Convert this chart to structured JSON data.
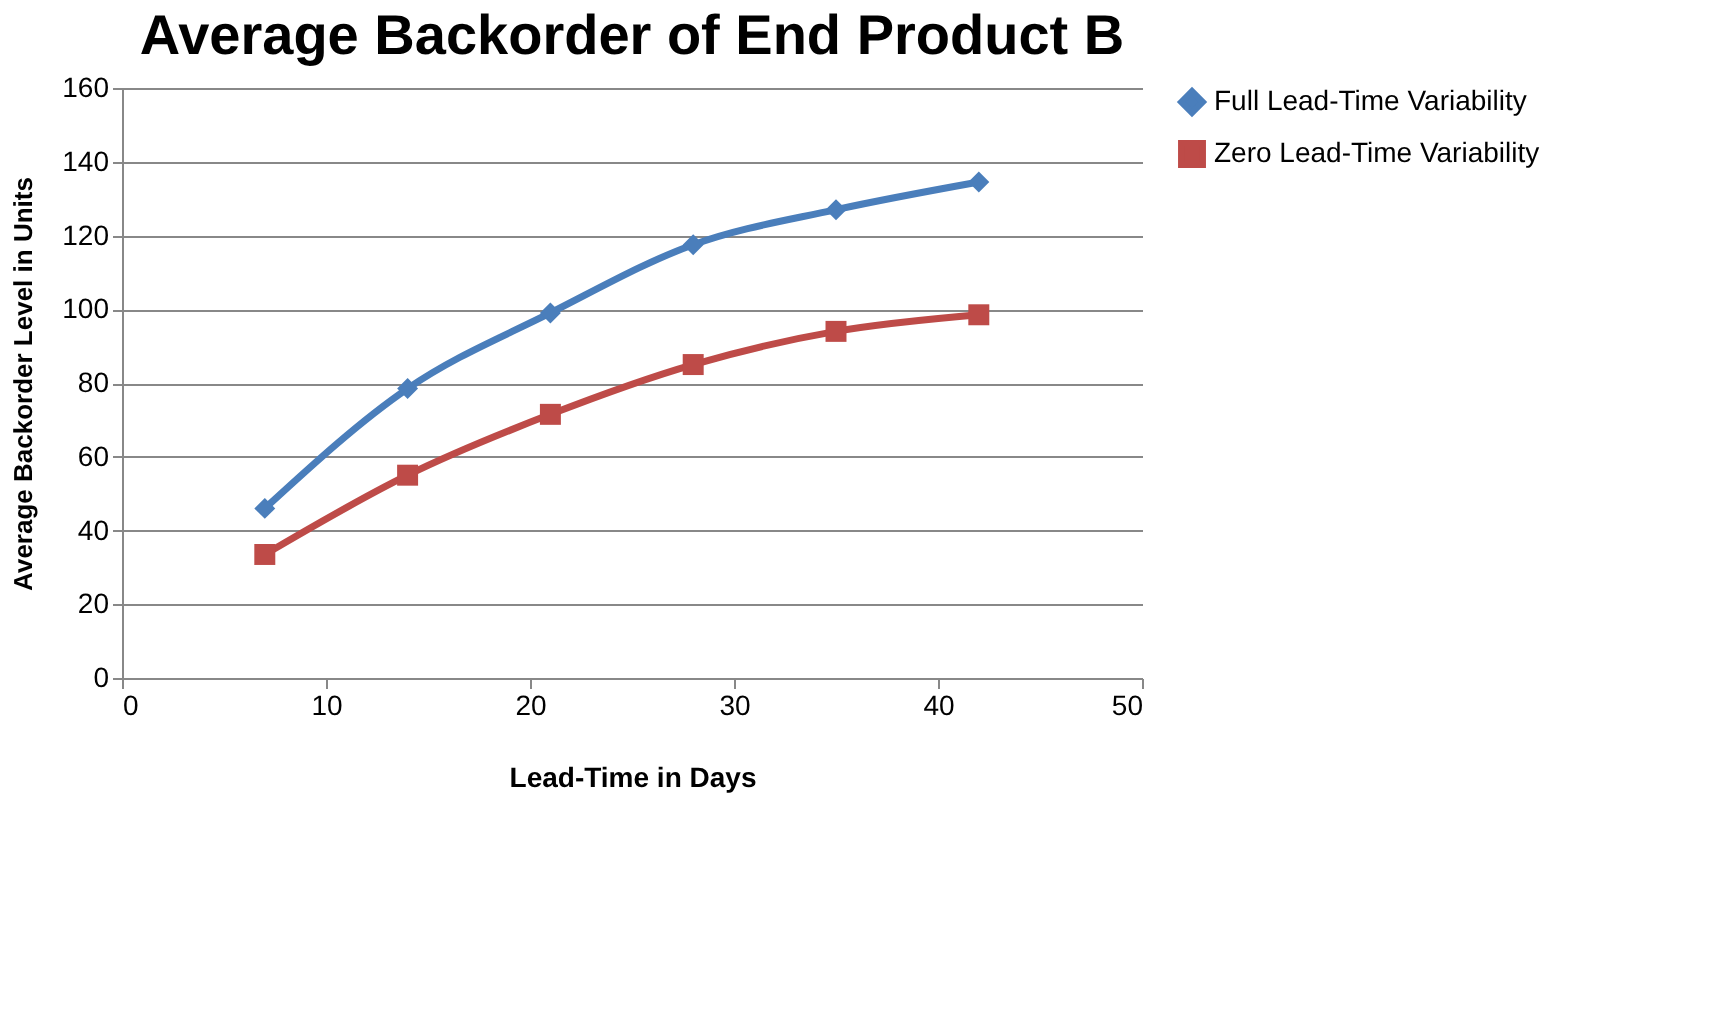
{
  "chart_data": {
    "type": "line",
    "title": "Average Backorder of End Product B",
    "xlabel": "Lead-Time in Days",
    "ylabel": "Average Backorder  Level in Units",
    "x": [
      7,
      14,
      21,
      28,
      35,
      42
    ],
    "series": [
      {
        "name": "Full Lead-Time Variability",
        "color": "#4a7ebb",
        "marker": "diamond",
        "values": [
          46,
          78.5,
          99,
          117.5,
          127,
          134.5
        ]
      },
      {
        "name": "Zero Lead-Time Variability",
        "color": "#be4b48",
        "marker": "square",
        "values": [
          33.5,
          55,
          71.5,
          85,
          94,
          98.5
        ]
      }
    ],
    "xlim": [
      0,
      50
    ],
    "xticks": [
      0,
      10,
      20,
      30,
      40,
      50
    ],
    "ylim": [
      0,
      160
    ],
    "yticks": [
      0,
      20,
      40,
      60,
      80,
      100,
      120,
      140,
      160
    ],
    "grid": "y",
    "legend": "right",
    "line_style": "solid"
  }
}
